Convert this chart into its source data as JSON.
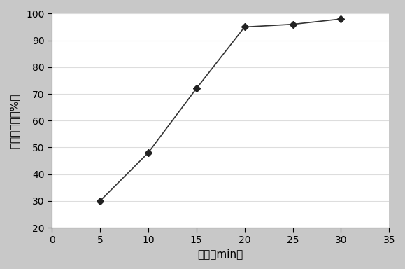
{
  "x": [
    5,
    10,
    15,
    20,
    25,
    30
  ],
  "y": [
    30,
    48,
    72,
    95,
    96,
    98
  ],
  "xlabel": "时间（min）",
  "ylabel": "累积溶出度（%）",
  "xlim": [
    0,
    35
  ],
  "ylim": [
    20,
    100
  ],
  "xticks": [
    0,
    5,
    10,
    15,
    20,
    25,
    30,
    35
  ],
  "yticks": [
    20,
    30,
    40,
    50,
    60,
    70,
    80,
    90,
    100
  ],
  "line_color": "#333333",
  "marker": "D",
  "marker_size": 5,
  "marker_color": "#222222",
  "outer_bg_color": "#c8c8c8",
  "plot_bg_color": "#ffffff",
  "grid_color": "#dddddd",
  "axis_fontsize": 11,
  "tick_fontsize": 10
}
